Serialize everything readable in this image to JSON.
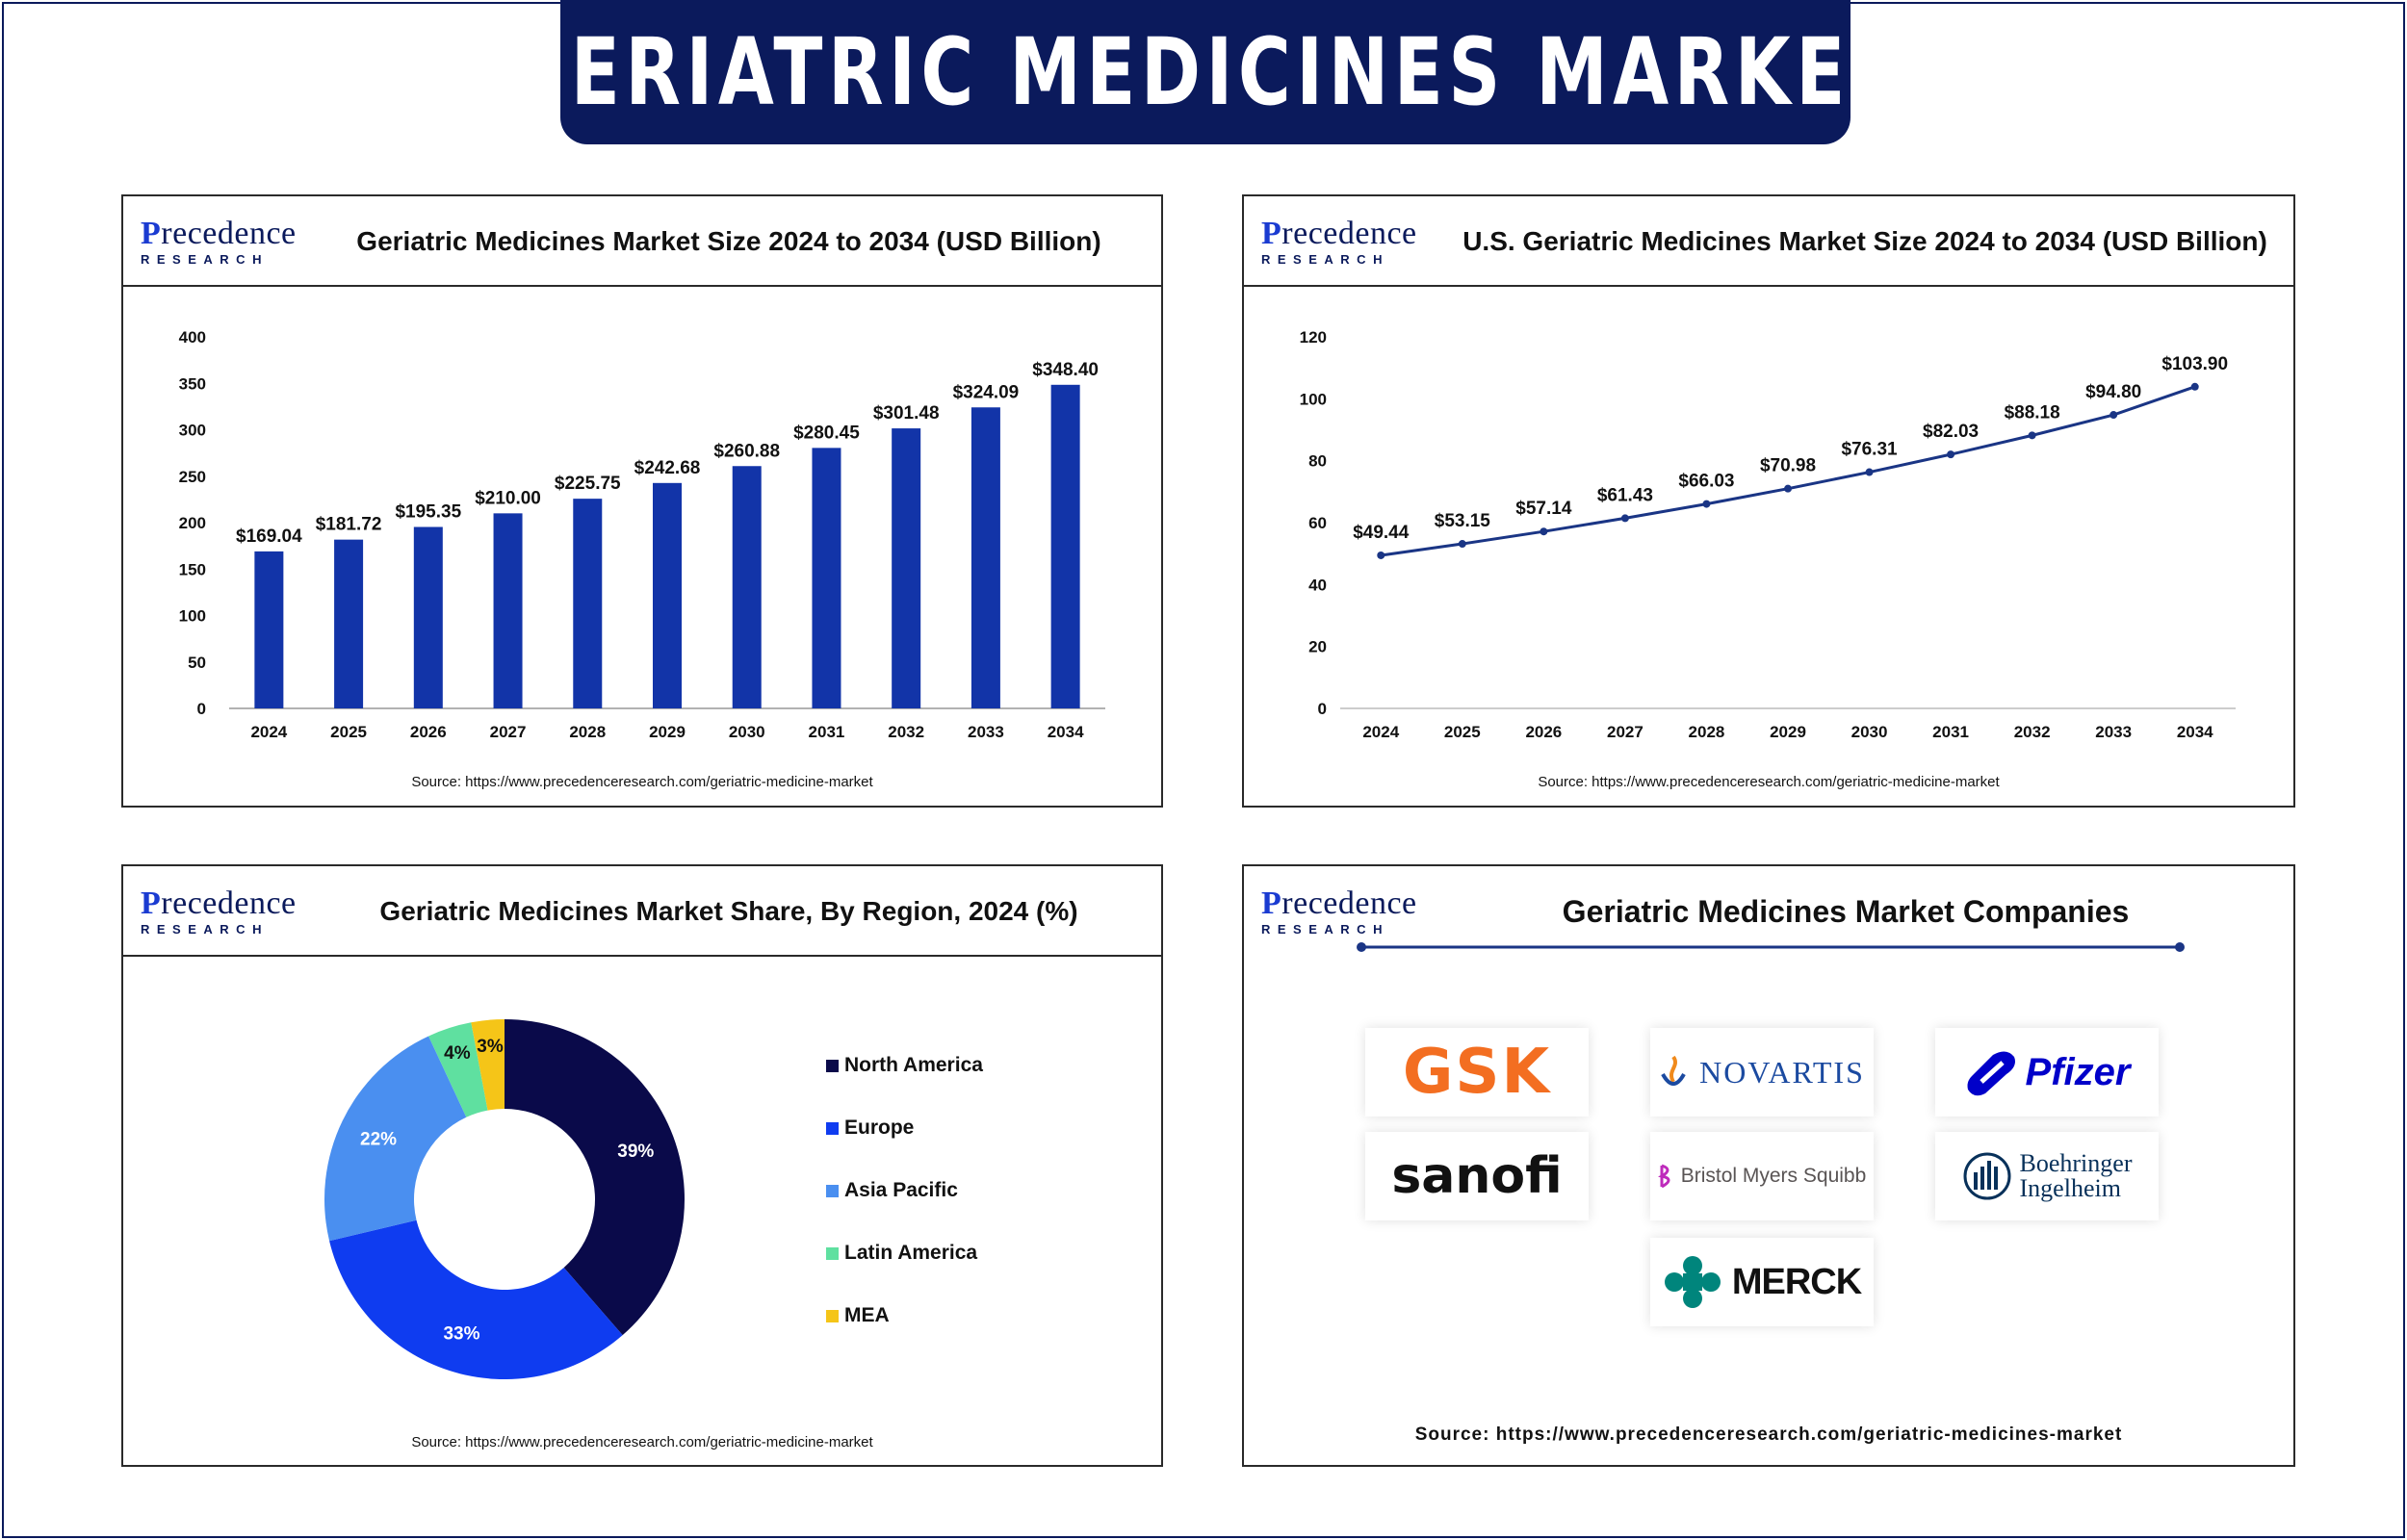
{
  "banner": {
    "title": "GERIATRIC MEDICINES MARKET"
  },
  "logo": {
    "line1_first": "P",
    "line1_rest": "recedence",
    "line2": "RESEARCH"
  },
  "colors": {
    "navy": "#0b1a5c",
    "bar": "#1234a8",
    "line": "#1a3585",
    "north_america": "#0a0a4a",
    "europe": "#0f3cf0",
    "asia_pacific": "#4a8ff0",
    "latin_america": "#5fe0a0",
    "mea": "#f5c518"
  },
  "panels": {
    "market_size": {
      "title": "Geriatric Medicines Market Size 2024 to 2034 (USD Billion)",
      "source": "Source: https://www.precedenceresearch.com/geriatric-medicine-market"
    },
    "us_size": {
      "title": "U.S. Geriatric Medicines Market Size 2024 to 2034 (USD Billion)",
      "source": "Source: https://www.precedenceresearch.com/geriatric-medicine-market"
    },
    "region_share": {
      "title": "Geriatric Medicines Market Share, By Region, 2024 (%)",
      "source": "Source: https://www.precedenceresearch.com/geriatric-medicine-market"
    },
    "companies": {
      "title": "Geriatric Medicines Market Companies",
      "source": "Source: https://www.precedenceresearch.com/geriatric-medicines-market",
      "logos": [
        {
          "name": "GSK",
          "icon": "gsk-logo"
        },
        {
          "name": "NOVARTIS",
          "icon": "novartis-logo"
        },
        {
          "name": "Pfizer",
          "icon": "pfizer-logo"
        },
        {
          "name": "sanofi",
          "icon": "sanofi-logo"
        },
        {
          "name": "Bristol Myers Squibb",
          "icon": "bms-logo"
        },
        {
          "name_line1": "Boehringer",
          "name_line2": "Ingelheim",
          "icon": "boehringer-logo"
        },
        {
          "name": "MERCK",
          "icon": "merck-logo"
        }
      ]
    }
  },
  "chart_data": [
    {
      "type": "bar",
      "title": "Geriatric Medicines Market Size 2024 to 2034 (USD Billion)",
      "categories": [
        "2024",
        "2025",
        "2026",
        "2027",
        "2028",
        "2029",
        "2030",
        "2031",
        "2032",
        "2033",
        "2034"
      ],
      "values": [
        169.04,
        181.72,
        195.35,
        210.0,
        225.75,
        242.68,
        260.88,
        280.45,
        301.48,
        324.09,
        348.4
      ],
      "value_labels": [
        "$169.04",
        "$181.72",
        "$195.35",
        "$210.00",
        "$225.75",
        "$242.68",
        "$260.88",
        "$280.45",
        "$301.48",
        "$324.09",
        "$348.40"
      ],
      "yticks": [
        0,
        50,
        100,
        150,
        200,
        250,
        300,
        350,
        400
      ],
      "ylim": [
        0,
        400
      ],
      "grid": false
    },
    {
      "type": "line",
      "title": "U.S. Geriatric Medicines Market Size 2024 to 2034 (USD Billion)",
      "categories": [
        "2024",
        "2025",
        "2026",
        "2027",
        "2028",
        "2029",
        "2030",
        "2031",
        "2032",
        "2033",
        "2034"
      ],
      "values": [
        49.44,
        53.15,
        57.14,
        61.43,
        66.03,
        70.98,
        76.31,
        82.03,
        88.18,
        94.8,
        103.9
      ],
      "value_labels": [
        "$49.44",
        "$53.15",
        "$57.14",
        "$61.43",
        "$66.03",
        "$70.98",
        "$76.31",
        "$82.03",
        "$88.18",
        "$94.80",
        "$103.90"
      ],
      "yticks": [
        0,
        20,
        40,
        60,
        80,
        100,
        120
      ],
      "ylim": [
        0,
        120
      ],
      "grid": false
    },
    {
      "type": "pie",
      "title": "Geriatric Medicines Market Share, By Region, 2024 (%)",
      "donut": true,
      "legend_position": "right",
      "slices": [
        {
          "label": "North America",
          "value": 39,
          "display": "39%",
          "color": "#0a0a4a"
        },
        {
          "label": "Europe",
          "value": 33,
          "display": "33%",
          "color": "#0f3cf0"
        },
        {
          "label": "Asia Pacific",
          "value": 22,
          "display": "22%",
          "color": "#4a8ff0"
        },
        {
          "label": "Latin America",
          "value": 4,
          "display": "4%",
          "color": "#5fe0a0"
        },
        {
          "label": "MEA",
          "value": 3,
          "display": "3%",
          "color": "#f5c518"
        }
      ]
    }
  ]
}
